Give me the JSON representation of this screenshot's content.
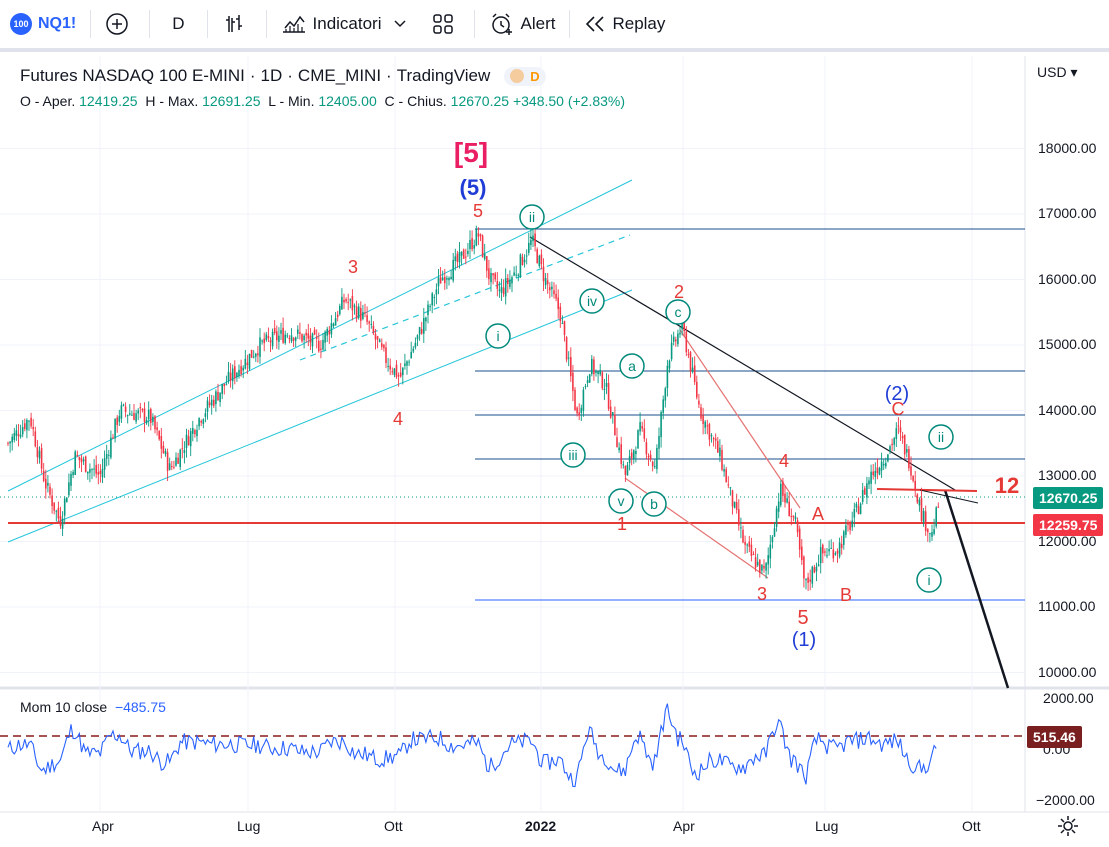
{
  "toolbar": {
    "symbol_badge": "100",
    "symbol": "NQ1!",
    "interval": "D",
    "indicators_label": "Indicatori",
    "alert_label": "Alert",
    "replay_label": "Replay"
  },
  "legend": {
    "title": "Futures NASDAQ 100 E-MINI",
    "interval": "1D",
    "exchange": "CME_MINI",
    "source": "TradingView",
    "category": "D",
    "open_label": "O - Aper.",
    "open": "12419.25",
    "high_label": "H - Max.",
    "high": "12691.25",
    "low_label": "L - Min.",
    "low": "12405.00",
    "close_label": "C - Chius.",
    "close": "12670.25",
    "change": "+348.50 (+2.83%)"
  },
  "indicator": {
    "name": "Mom 10 close",
    "value": "−485.75"
  },
  "price_scale": {
    "currency": "USD",
    "labels": [
      "18000.00",
      "17000.00",
      "16000.00",
      "15000.00",
      "14000.00",
      "13000.00",
      "12000.00",
      "11000.00",
      "10000.00"
    ],
    "last_price": "12670.25",
    "line_price": "12259.75",
    "mom_labels": [
      "2000.00",
      "0.00",
      "−2000.00"
    ],
    "mom_marker": "515.46"
  },
  "time_axis": {
    "labels": [
      "Apr",
      "Lug",
      "Ott",
      "2022",
      "Apr",
      "Lug",
      "Ott"
    ]
  },
  "annotations": {
    "wave5_bracket": "[5]",
    "wave5_paren": "(5)",
    "w5": "5",
    "w3": "3",
    "w4": "4",
    "ii": "ii",
    "i": "i",
    "iv": "iv",
    "iii": "iii",
    "v": "v",
    "a": "a",
    "b": "b",
    "c": "c",
    "w2": "2",
    "w1": "1",
    "w3b": "3",
    "w4b": "4",
    "w5b": "5",
    "wave1_paren": "(1)",
    "A": "A",
    "B": "B",
    "C": "C",
    "wave2_paren": "(2)",
    "ii2": "ii",
    "i2": "i",
    "num12": "12"
  },
  "colors": {
    "accent": "#2962ff",
    "up": "#089981",
    "down": "#f23645",
    "channel": "#26c6da",
    "wave_red": "#e53935",
    "wave_blue": "#1f3dd6",
    "wave_teal": "#00897b",
    "momentum": "#2962ff"
  }
}
